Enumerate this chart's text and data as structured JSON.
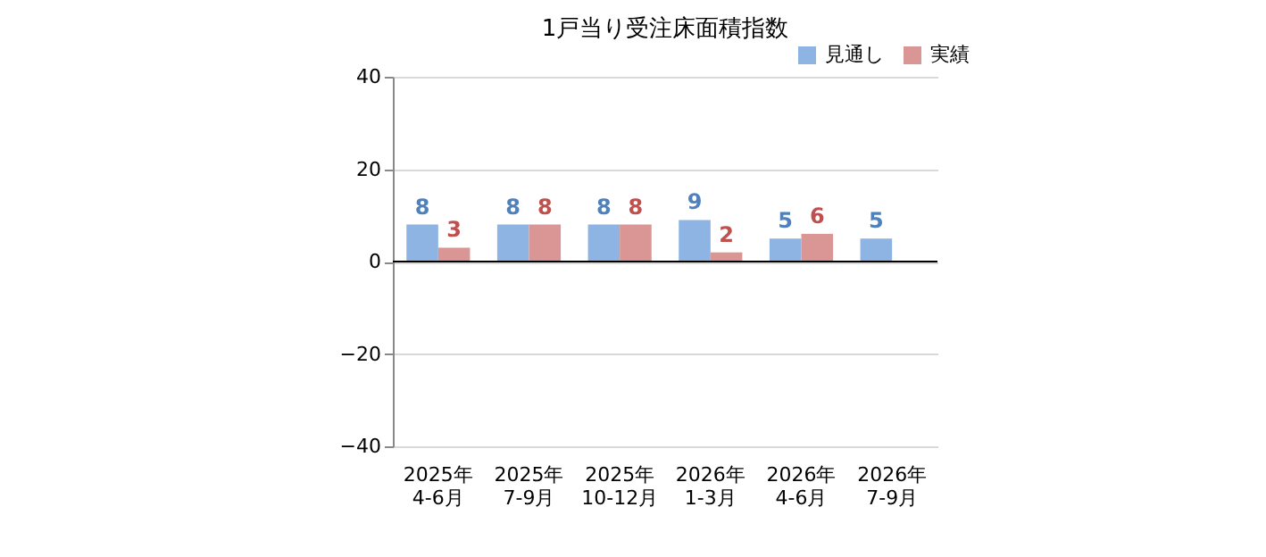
{
  "chart_data": {
    "type": "bar",
    "title": "1戸当り受注床面積指数",
    "categories": [
      "2025年\n4-6月",
      "2025年\n7-9月",
      "2025年\n10-12月",
      "2026年\n1-3月",
      "2026年\n4-6月",
      "2026年\n7-9月"
    ],
    "series": [
      {
        "name": "見通し",
        "color": "#8db4e2",
        "values": [
          8,
          8,
          8,
          9,
          5,
          5
        ]
      },
      {
        "name": "実績",
        "color": "#d99694",
        "values": [
          3,
          8,
          8,
          2,
          6,
          null
        ]
      }
    ],
    "ylim": [
      -40,
      40
    ],
    "yticks": [
      -40,
      -20,
      0,
      20,
      40
    ],
    "grid": "y",
    "legend": "top right",
    "data_labels": true,
    "ref_lines": [
      {
        "axis": "y",
        "value": 0,
        "color": "#000000"
      }
    ]
  }
}
